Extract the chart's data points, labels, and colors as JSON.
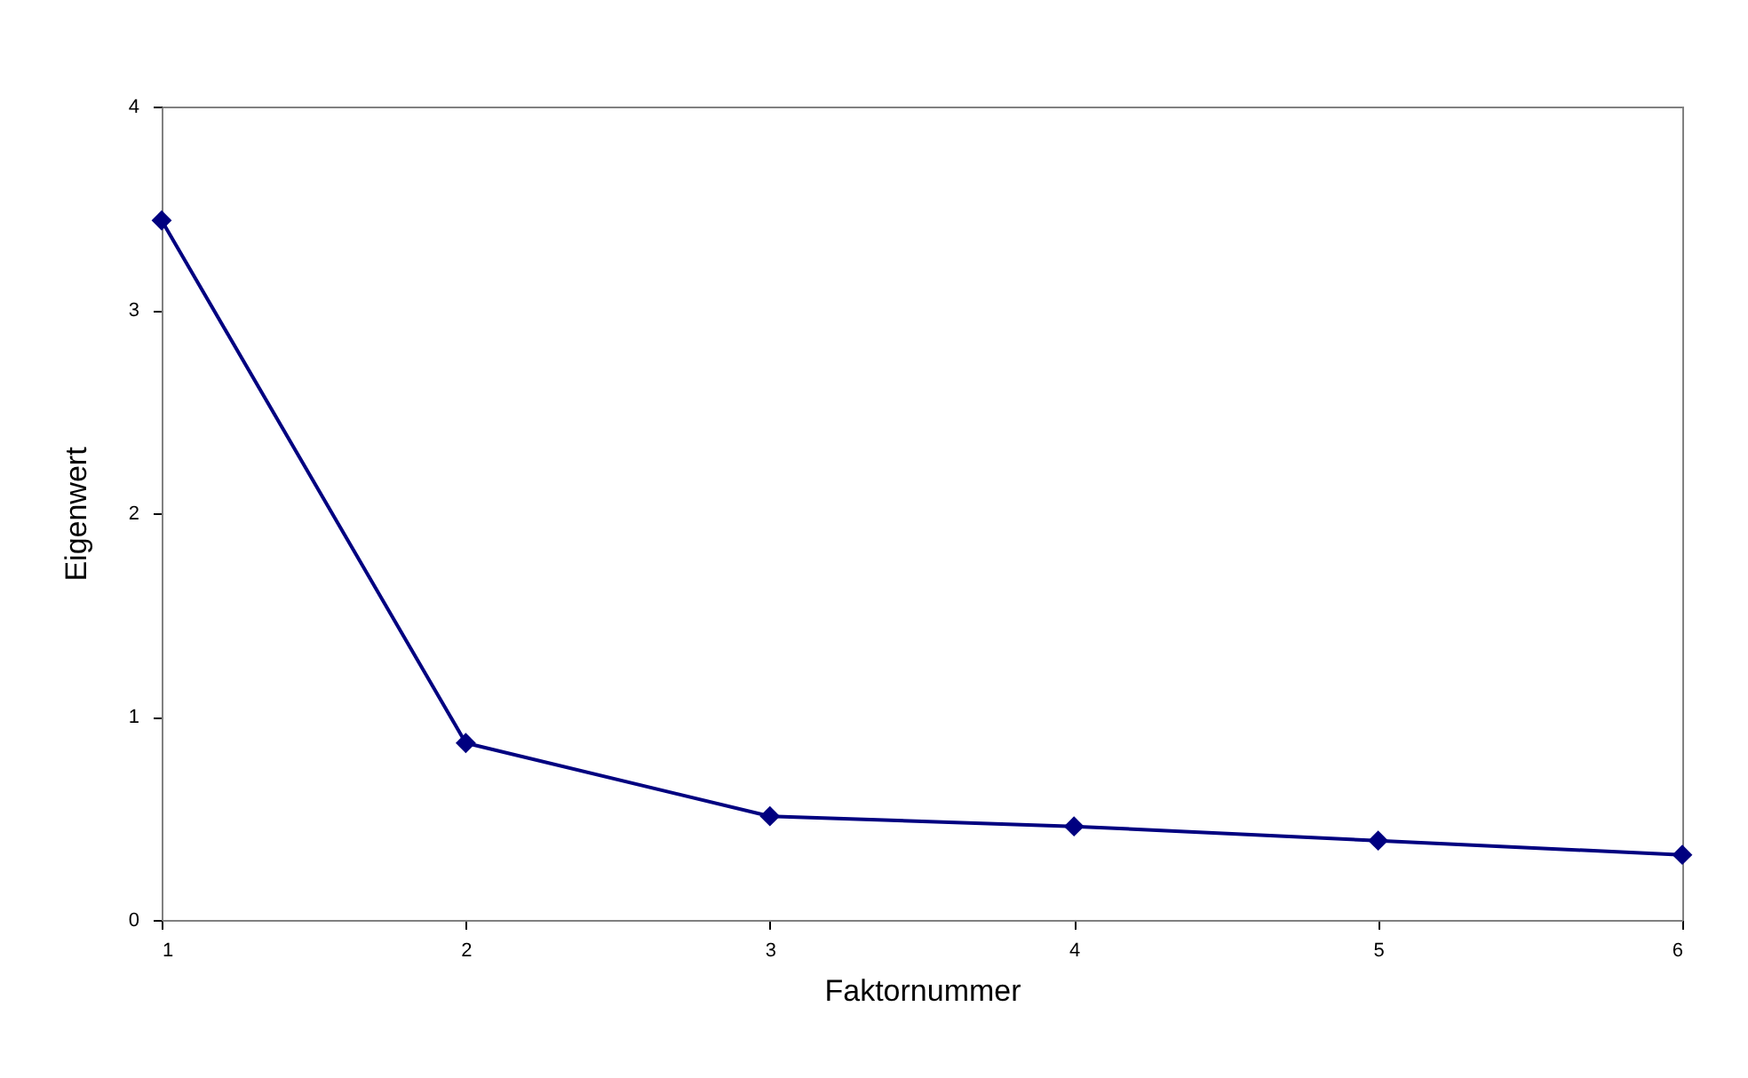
{
  "chart_data": {
    "type": "line",
    "xlabel": "Faktornummer",
    "ylabel": "Eigenwert",
    "x": [
      1,
      2,
      3,
      4,
      5,
      6
    ],
    "series": [
      {
        "color": "#000080",
        "values": [
          3.44,
          0.87,
          0.51,
          0.46,
          0.39,
          0.32
        ]
      }
    ],
    "xlim": [
      1,
      6
    ],
    "xticks": [
      1,
      2,
      3,
      4,
      5,
      6
    ],
    "ylim": [
      0,
      4
    ],
    "yticks": [
      0,
      1,
      2,
      3,
      4
    ],
    "grid": false,
    "marker": "diamond",
    "line_style": "solid"
  }
}
